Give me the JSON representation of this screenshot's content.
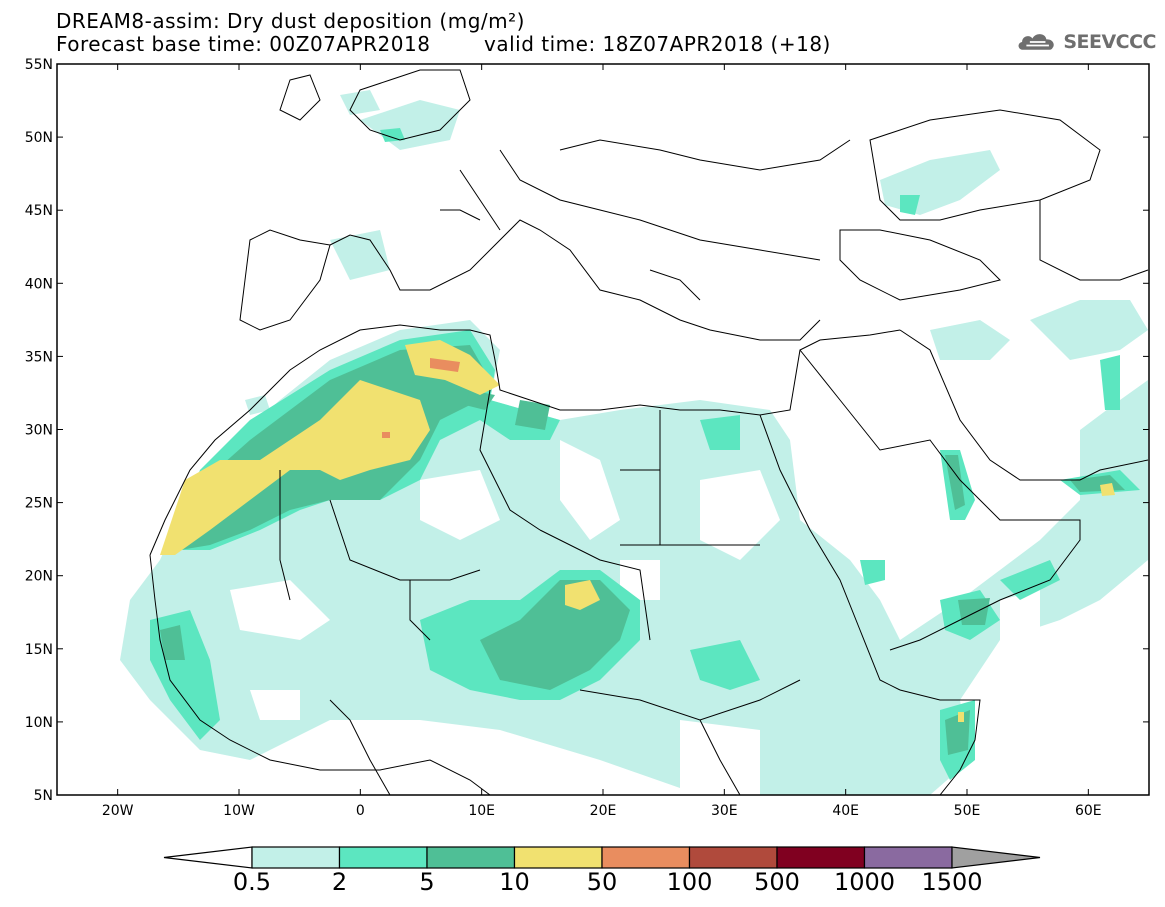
{
  "title": {
    "line1": "DREAM8-assim: Dry dust deposition (mg/m²)",
    "line2": "Forecast base time: 00Z07APR2018",
    "valid": "valid time: 18Z07APR2018 (+18)"
  },
  "logo": {
    "text": "SEEVCCC",
    "icon": "cloud-icon"
  },
  "map": {
    "lat_labels": [
      "55N",
      "50N",
      "45N",
      "40N",
      "35N",
      "30N",
      "25N",
      "20N",
      "15N",
      "10N",
      "5N"
    ],
    "lon_labels": [
      "20W",
      "10W",
      "0",
      "10E",
      "20E",
      "30E",
      "40E",
      "50E",
      "60E"
    ],
    "extent": {
      "lon": [
        -25,
        65
      ],
      "lat": [
        5,
        55
      ]
    },
    "colors": {
      "land_line": "#000000",
      "bg": "#ffffff"
    }
  },
  "colorbar": {
    "colors": [
      "#c2f0e8",
      "#5ce6c0",
      "#4fbf96",
      "#f1e170",
      "#e98d5f",
      "#b04a3c",
      "#800020",
      "#8a6aa0"
    ],
    "under_color": "#ffffff",
    "over_color": "#a0a0a0",
    "labels": [
      "0.5",
      "2",
      "5",
      "10",
      "50",
      "100",
      "500",
      "1000",
      "1500"
    ]
  }
}
